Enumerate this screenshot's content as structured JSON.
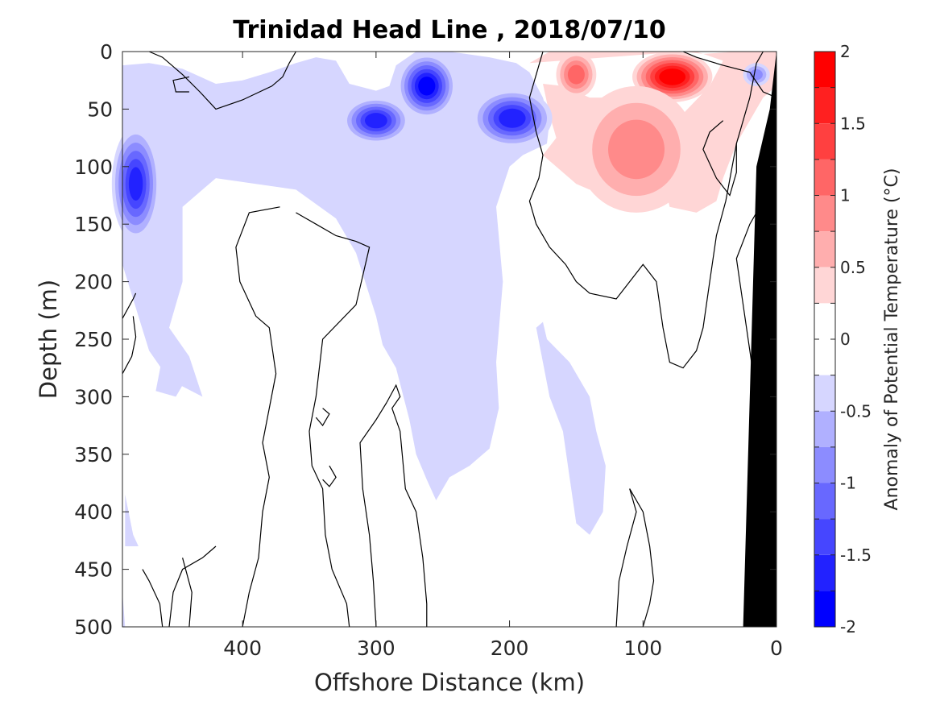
{
  "chart_data": {
    "type": "heatmap",
    "title": "Trinidad Head Line , 2018/07/10",
    "xlabel": "Offshore Distance (km)",
    "ylabel": "Depth (m)",
    "xlim": [
      490,
      0
    ],
    "ylim": [
      0,
      500
    ],
    "x_ticks": [
      "400",
      "300",
      "200",
      "100",
      "0"
    ],
    "x_tick_values": [
      400,
      300,
      200,
      100,
      0
    ],
    "y_ticks": [
      "0",
      "50",
      "100",
      "150",
      "200",
      "250",
      "300",
      "350",
      "400",
      "450",
      "500"
    ],
    "y_tick_values": [
      0,
      50,
      100,
      150,
      200,
      250,
      300,
      350,
      400,
      450,
      500
    ],
    "colorbar": {
      "label": "Anomaly of Potential Temperature (°C)",
      "ticks": [
        "2",
        "1.5",
        "1",
        "0.5",
        "0",
        "-0.5",
        "-1",
        "-1.5",
        "-2"
      ],
      "tick_values": [
        2,
        1.5,
        1,
        0.5,
        0,
        -0.5,
        -1,
        -1.5,
        -2
      ],
      "range": [
        -2,
        2
      ],
      "levels": [
        {
          "from": 1.75,
          "to": 2.0,
          "color": "#ff0000"
        },
        {
          "from": 1.5,
          "to": 1.75,
          "color": "#ff2020"
        },
        {
          "from": 1.25,
          "to": 1.5,
          "color": "#ff4040"
        },
        {
          "from": 1.0,
          "to": 1.25,
          "color": "#ff6666"
        },
        {
          "from": 0.75,
          "to": 1.0,
          "color": "#ff8a8a"
        },
        {
          "from": 0.5,
          "to": 0.75,
          "color": "#ffaeae"
        },
        {
          "from": 0.25,
          "to": 0.5,
          "color": "#ffd6d6"
        },
        {
          "from": 0.0,
          "to": 0.25,
          "color": "#ffffff"
        },
        {
          "from": -0.25,
          "to": 0.0,
          "color": "#ffffff"
        },
        {
          "from": -0.5,
          "to": -0.25,
          "color": "#d6d6ff"
        },
        {
          "from": -0.75,
          "to": -0.5,
          "color": "#b0b0ff"
        },
        {
          "from": -1.0,
          "to": -0.75,
          "color": "#8c8cff"
        },
        {
          "from": -1.25,
          "to": -1.0,
          "color": "#6868ff"
        },
        {
          "from": -1.5,
          "to": -1.25,
          "color": "#4646ff"
        },
        {
          "from": -1.75,
          "to": -1.5,
          "color": "#2222ff"
        },
        {
          "from": -2.0,
          "to": -1.75,
          "color": "#0000ff"
        }
      ]
    },
    "anomaly_features": [
      {
        "name": "offshore cold core",
        "center": [
          480,
          115
        ],
        "peak": -1.5,
        "radius": [
          18,
          50
        ],
        "inner": [
          [
            490,
            115,
            -0.6,
            22,
            55
          ],
          [
            488,
            115,
            -0.9,
            12,
            40
          ]
        ]
      },
      {
        "name": "cold core 60 m",
        "center": [
          300,
          60
        ],
        "peak": -1.6,
        "radius": [
          25,
          20
        ]
      },
      {
        "name": "cold core 30 m",
        "center": [
          262,
          30
        ],
        "peak": -1.8,
        "radius": [
          22,
          28
        ]
      },
      {
        "name": "cold core 200 km",
        "center": [
          198,
          58
        ],
        "peak": -1.6,
        "radius": [
          30,
          25
        ]
      },
      {
        "name": "warm core near shore",
        "center": [
          78,
          22
        ],
        "peak": 1.9,
        "radius": [
          30,
          22
        ]
      },
      {
        "name": "warm core 150 km",
        "center": [
          150,
          20
        ],
        "peak": 1.1,
        "radius": [
          15,
          20
        ]
      },
      {
        "name": "warm patch 100 km",
        "center": [
          105,
          85
        ],
        "peak": 0.8,
        "radius": [
          45,
          55
        ]
      },
      {
        "name": "nearshore surface cold",
        "center": [
          15,
          20
        ],
        "peak": -0.8,
        "radius": [
          10,
          10
        ]
      }
    ],
    "shelf_bottom": [
      [
        0,
        0
      ],
      [
        5,
        50
      ],
      [
        15,
        100
      ],
      [
        25,
        500
      ]
    ],
    "grid": false
  }
}
